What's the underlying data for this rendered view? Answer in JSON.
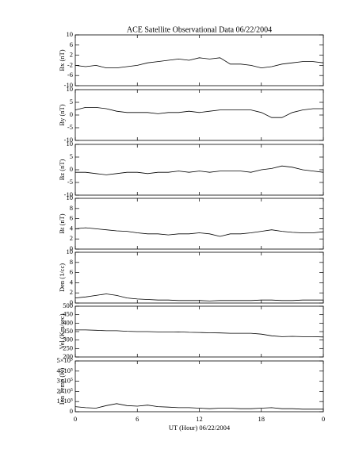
{
  "chart_data": [
    {
      "type": "line",
      "title": "ACE Satellite Observational Data   06/22/2004",
      "ylabel": "Bx (nT)",
      "color": "#000000",
      "x": [
        0,
        1,
        2,
        3,
        4,
        5,
        6,
        7,
        8,
        9,
        10,
        11,
        12,
        13,
        14,
        15,
        16,
        17,
        18,
        19,
        20,
        21,
        22,
        23,
        24
      ],
      "values": [
        -2,
        -2.5,
        -2,
        -3,
        -3,
        -2.5,
        -2,
        -1,
        -0.5,
        0,
        0.5,
        0,
        1,
        0.5,
        1,
        -1.5,
        -1.5,
        -2,
        -3,
        -2.5,
        -1.5,
        -1,
        -0.5,
        -0.5,
        -1
      ],
      "xlim": [
        0,
        24
      ],
      "xticks": [
        0,
        6,
        12,
        18,
        {
          "value": 24,
          "label": "0"
        }
      ],
      "ylim": [
        -10,
        10
      ],
      "yticks": [
        10,
        6,
        2,
        -2,
        -6,
        -10
      ]
    },
    {
      "type": "line",
      "ylabel": "By (nT)",
      "color": "#000000",
      "x": [
        0,
        1,
        2,
        3,
        4,
        5,
        6,
        7,
        8,
        9,
        10,
        11,
        12,
        13,
        14,
        15,
        16,
        17,
        18,
        19,
        20,
        21,
        22,
        23,
        24
      ],
      "values": [
        2,
        3,
        3,
        2.5,
        1.5,
        1,
        1,
        1,
        0.5,
        1,
        1,
        1.5,
        1,
        1.5,
        2,
        2,
        2,
        2,
        1,
        -1,
        -1,
        1,
        2,
        2.5,
        2.5
      ],
      "xlim": [
        0,
        24
      ],
      "xticks": [
        0,
        6,
        12,
        18,
        {
          "value": 24,
          "label": "0"
        }
      ],
      "ylim": [
        -10,
        10
      ],
      "yticks": [
        10,
        5,
        0,
        -5,
        -10
      ]
    },
    {
      "type": "line",
      "ylabel": "Bz (nT)",
      "color": "#000000",
      "x": [
        0,
        1,
        2,
        3,
        4,
        5,
        6,
        7,
        8,
        9,
        10,
        11,
        12,
        13,
        14,
        15,
        16,
        17,
        18,
        19,
        20,
        21,
        22,
        23,
        24
      ],
      "values": [
        -1,
        -1,
        -1.5,
        -2,
        -1.5,
        -1,
        -1,
        -1.5,
        -1,
        -1,
        -0.5,
        -1,
        -0.5,
        -1,
        -0.5,
        -0.5,
        -0.5,
        -1,
        0,
        0.5,
        1.5,
        1,
        0,
        -0.5,
        -1
      ],
      "xlim": [
        0,
        24
      ],
      "xticks": [
        0,
        6,
        12,
        18,
        {
          "value": 24,
          "label": "0"
        }
      ],
      "ylim": [
        -10,
        10
      ],
      "yticks": [
        10,
        5,
        0,
        -5,
        -10
      ]
    },
    {
      "type": "line",
      "ylabel": "Bt (nT)",
      "color": "#000000",
      "x": [
        0,
        1,
        2,
        3,
        4,
        5,
        6,
        7,
        8,
        9,
        10,
        11,
        12,
        13,
        14,
        15,
        16,
        17,
        18,
        19,
        20,
        21,
        22,
        23,
        24
      ],
      "values": [
        4,
        4.2,
        4,
        3.8,
        3.6,
        3.5,
        3.2,
        3,
        3,
        2.8,
        3,
        3,
        3.2,
        3,
        2.5,
        3,
        3,
        3.2,
        3.5,
        3.8,
        3.5,
        3.3,
        3.2,
        3.2,
        3.4
      ],
      "xlim": [
        0,
        24
      ],
      "xticks": [
        0,
        6,
        12,
        18,
        {
          "value": 24,
          "label": "0"
        }
      ],
      "ylim": [
        0,
        10
      ],
      "yticks": [
        10,
        8,
        6,
        4,
        2,
        0
      ]
    },
    {
      "type": "line",
      "ylabel": "Den (1/cc)",
      "color": "#000000",
      "x": [
        0,
        1,
        2,
        3,
        4,
        5,
        6,
        7,
        8,
        9,
        10,
        11,
        12,
        13,
        14,
        15,
        16,
        17,
        18,
        19,
        20,
        21,
        22,
        23,
        24
      ],
      "values": [
        1,
        1.2,
        1.5,
        1.8,
        1.5,
        1,
        0.8,
        0.7,
        0.6,
        0.6,
        0.5,
        0.5,
        0.5,
        0.4,
        0.5,
        0.5,
        0.5,
        0.5,
        0.6,
        0.6,
        0.5,
        0.5,
        0.6,
        0.6,
        0.6
      ],
      "xlim": [
        0,
        24
      ],
      "xticks": [
        0,
        6,
        12,
        18,
        {
          "value": 24,
          "label": "0"
        }
      ],
      "ylim": [
        0,
        10
      ],
      "yticks": [
        10,
        8,
        6,
        4,
        2,
        0
      ]
    },
    {
      "type": "line",
      "ylabel": "Vel (Km/sec)",
      "color": "#000000",
      "x": [
        0,
        1,
        2,
        3,
        4,
        5,
        6,
        7,
        8,
        9,
        10,
        11,
        12,
        13,
        14,
        15,
        16,
        17,
        18,
        19,
        20,
        21,
        22,
        23,
        24
      ],
      "values": [
        360,
        360,
        358,
        355,
        355,
        352,
        350,
        350,
        348,
        347,
        348,
        346,
        345,
        343,
        342,
        340,
        340,
        340,
        335,
        325,
        320,
        322,
        320,
        320,
        318
      ],
      "xlim": [
        0,
        24
      ],
      "xticks": [
        0,
        6,
        12,
        18,
        {
          "value": 24,
          "label": "0"
        }
      ],
      "ylim": [
        200,
        500
      ],
      "yticks": [
        500,
        450,
        400,
        350,
        300,
        250,
        200
      ]
    },
    {
      "type": "line",
      "ylabel": "Ion Temp (K)",
      "xlabel": "UT (Hour)   06/22/2004",
      "color": "#000000",
      "x": [
        0,
        1,
        2,
        3,
        4,
        5,
        6,
        7,
        8,
        9,
        10,
        11,
        12,
        13,
        14,
        15,
        16,
        17,
        18,
        19,
        20,
        21,
        22,
        23,
        24
      ],
      "values": [
        50000,
        40000,
        35000,
        60000,
        80000,
        60000,
        55000,
        65000,
        50000,
        45000,
        40000,
        40000,
        35000,
        30000,
        35000,
        35000,
        30000,
        30000,
        35000,
        40000,
        30000,
        30000,
        25000,
        25000,
        25000
      ],
      "xlim": [
        0,
        24
      ],
      "xticks": [
        0,
        6,
        12,
        18,
        {
          "value": 24,
          "label": "0"
        }
      ],
      "ylim": [
        0,
        500000
      ],
      "yticks": [
        {
          "value": 500000,
          "label": "5×10⁵"
        },
        {
          "value": 400000,
          "label": "4×10⁵"
        },
        {
          "value": 300000,
          "label": "3×10⁵"
        },
        {
          "value": 200000,
          "label": "2×10⁵"
        },
        {
          "value": 100000,
          "label": "1×10⁵"
        },
        0
      ]
    }
  ]
}
